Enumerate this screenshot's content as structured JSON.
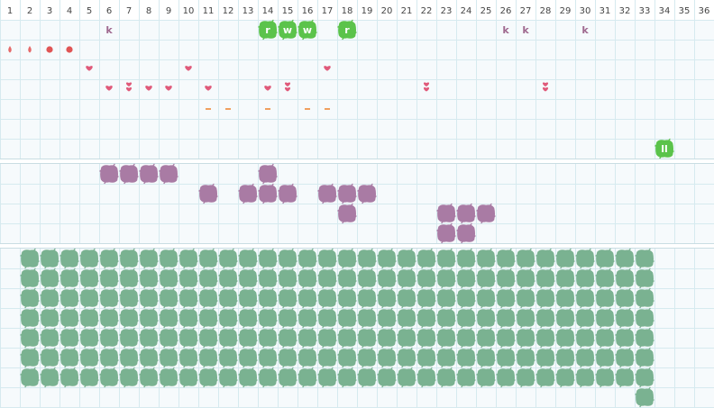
{
  "columns": [
    "1",
    "2",
    "3",
    "4",
    "5",
    "6",
    "7",
    "8",
    "9",
    "10",
    "11",
    "12",
    "13",
    "14",
    "15",
    "16",
    "17",
    "18",
    "19",
    "20",
    "21",
    "22",
    "23",
    "24",
    "25",
    "26",
    "27",
    "28",
    "29",
    "30",
    "31",
    "32",
    "33",
    "34",
    "35",
    "36"
  ],
  "colors": {
    "grid": "#d6eaef",
    "panel": "#f6fafc",
    "divider": "#c9dde3",
    "k_letter": "#a06a90",
    "green_blob": "#5bc34b",
    "drop": "#e56a6a",
    "dot": "#e05555",
    "heart": "#e05a7a",
    "dash": "#f0a060",
    "purple_blob": "#a97ba4",
    "sage_blob": "#7ab291"
  },
  "panel1": {
    "k_markers": [
      {
        "col": 6,
        "text": "k"
      },
      {
        "col": 26,
        "text": "k"
      },
      {
        "col": 27,
        "text": "k"
      },
      {
        "col": 30,
        "text": "k"
      }
    ],
    "green_tiles": [
      {
        "col": 14,
        "row": 0,
        "text": "r"
      },
      {
        "col": 15,
        "row": 0,
        "text": "w"
      },
      {
        "col": 16,
        "row": 0,
        "text": "w"
      },
      {
        "col": 18,
        "row": 0,
        "text": "r"
      },
      {
        "col": 34,
        "row": 6,
        "text": "ll"
      }
    ],
    "row1_marks": [
      {
        "col": 1,
        "shape": "drop"
      },
      {
        "col": 2,
        "shape": "drop"
      },
      {
        "col": 3,
        "shape": "dot"
      },
      {
        "col": 4,
        "shape": "dot"
      }
    ],
    "hearts": [
      {
        "col": 5,
        "row": 2,
        "count": 1
      },
      {
        "col": 6,
        "row": 3,
        "count": 1
      },
      {
        "col": 7,
        "row": 3,
        "count": 2
      },
      {
        "col": 8,
        "row": 3,
        "count": 1
      },
      {
        "col": 9,
        "row": 3,
        "count": 1
      },
      {
        "col": 10,
        "row": 2,
        "count": 1
      },
      {
        "col": 11,
        "row": 3,
        "count": 1
      },
      {
        "col": 14,
        "row": 3,
        "count": 1
      },
      {
        "col": 15,
        "row": 3,
        "count": 2
      },
      {
        "col": 17,
        "row": 2,
        "count": 1
      },
      {
        "col": 22,
        "row": 3,
        "count": 2
      },
      {
        "col": 28,
        "row": 3,
        "count": 2
      }
    ],
    "dashes": [
      11,
      12,
      14,
      16,
      17
    ]
  },
  "panel2": {
    "cells": [
      [
        6,
        0
      ],
      [
        7,
        0
      ],
      [
        8,
        0
      ],
      [
        9,
        0
      ],
      [
        14,
        0
      ],
      [
        11,
        1
      ],
      [
        13,
        1
      ],
      [
        14,
        1
      ],
      [
        15,
        1
      ],
      [
        17,
        1
      ],
      [
        18,
        1
      ],
      [
        19,
        1
      ],
      [
        18,
        2
      ],
      [
        23,
        2
      ],
      [
        24,
        2
      ],
      [
        25,
        2
      ],
      [
        23,
        3
      ],
      [
        24,
        3
      ]
    ]
  },
  "panel3": {
    "full_rows": 7,
    "columns_per_row": 32,
    "start_col": 2,
    "last_row_cols": [
      33
    ]
  }
}
